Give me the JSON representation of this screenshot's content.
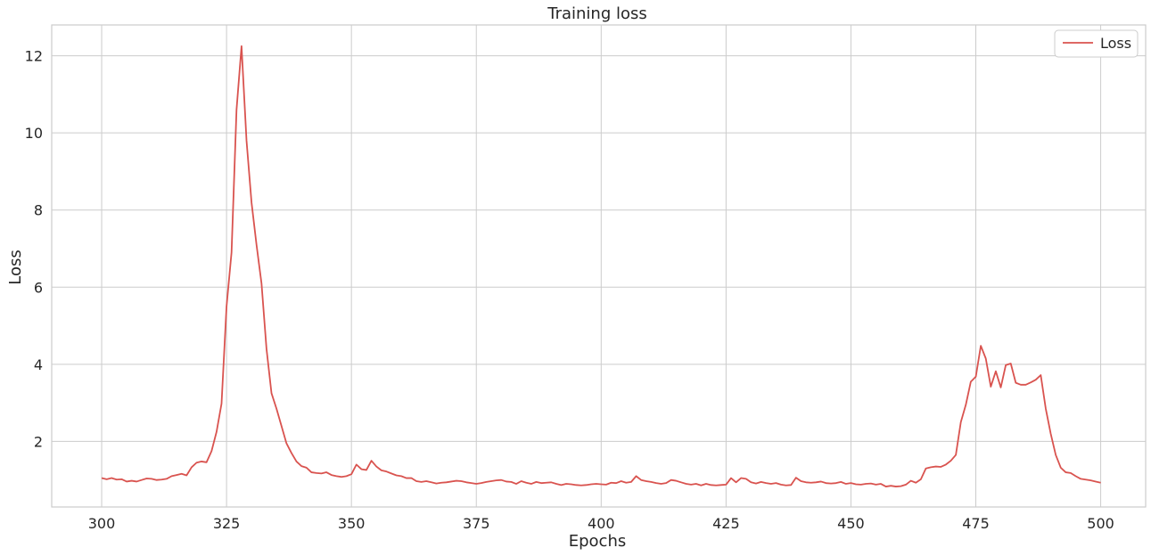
{
  "chart_data": {
    "type": "line",
    "title": "Training loss",
    "xlabel": "Epochs",
    "ylabel": "Loss",
    "xlim": [
      290,
      509
    ],
    "ylim": [
      0.3,
      12.8
    ],
    "xticks": [
      300,
      325,
      350,
      375,
      400,
      425,
      450,
      475,
      500
    ],
    "yticks": [
      2,
      4,
      6,
      8,
      10,
      12
    ],
    "grid": true,
    "legend": {
      "position": "top-right",
      "entries": [
        "Loss"
      ]
    },
    "series": [
      {
        "name": "Loss",
        "color": "#d9534f",
        "x_start": 300,
        "x_step": 1,
        "values": [
          1.05,
          1.02,
          1.05,
          1.01,
          1.02,
          0.96,
          0.98,
          0.96,
          1.0,
          1.04,
          1.03,
          1.0,
          1.01,
          1.03,
          1.1,
          1.13,
          1.16,
          1.12,
          1.33,
          1.45,
          1.48,
          1.46,
          1.75,
          2.25,
          2.98,
          5.5,
          6.9,
          10.6,
          12.25,
          9.8,
          8.2,
          7.1,
          6.1,
          4.4,
          3.25,
          2.85,
          2.4,
          1.95,
          1.7,
          1.48,
          1.36,
          1.32,
          1.2,
          1.18,
          1.17,
          1.2,
          1.13,
          1.1,
          1.08,
          1.1,
          1.15,
          1.4,
          1.28,
          1.26,
          1.5,
          1.35,
          1.25,
          1.22,
          1.17,
          1.12,
          1.1,
          1.05,
          1.05,
          0.97,
          0.95,
          0.97,
          0.94,
          0.91,
          0.93,
          0.94,
          0.96,
          0.98,
          0.97,
          0.94,
          0.92,
          0.9,
          0.92,
          0.95,
          0.97,
          0.99,
          1.0,
          0.96,
          0.95,
          0.9,
          0.97,
          0.93,
          0.9,
          0.95,
          0.92,
          0.93,
          0.94,
          0.9,
          0.87,
          0.9,
          0.89,
          0.87,
          0.86,
          0.87,
          0.89,
          0.9,
          0.89,
          0.88,
          0.93,
          0.92,
          0.97,
          0.93,
          0.95,
          1.1,
          1.0,
          0.97,
          0.95,
          0.92,
          0.9,
          0.92,
          1.0,
          0.98,
          0.94,
          0.9,
          0.88,
          0.9,
          0.86,
          0.9,
          0.87,
          0.86,
          0.87,
          0.88,
          1.05,
          0.94,
          1.05,
          1.03,
          0.94,
          0.91,
          0.95,
          0.92,
          0.9,
          0.92,
          0.88,
          0.86,
          0.87,
          1.06,
          0.97,
          0.94,
          0.93,
          0.94,
          0.96,
          0.92,
          0.91,
          0.92,
          0.95,
          0.9,
          0.92,
          0.89,
          0.88,
          0.9,
          0.91,
          0.88,
          0.9,
          0.83,
          0.85,
          0.83,
          0.84,
          0.88,
          0.98,
          0.93,
          1.02,
          1.3,
          1.33,
          1.35,
          1.34,
          1.4,
          1.5,
          1.65,
          2.5,
          2.95,
          3.55,
          3.68,
          4.48,
          4.15,
          3.42,
          3.82,
          3.4,
          3.98,
          4.02,
          3.52,
          3.47,
          3.47,
          3.53,
          3.6,
          3.72,
          2.85,
          2.2,
          1.65,
          1.32,
          1.2,
          1.18,
          1.1,
          1.03,
          1.01,
          0.99,
          0.96,
          0.93
        ]
      }
    ]
  }
}
